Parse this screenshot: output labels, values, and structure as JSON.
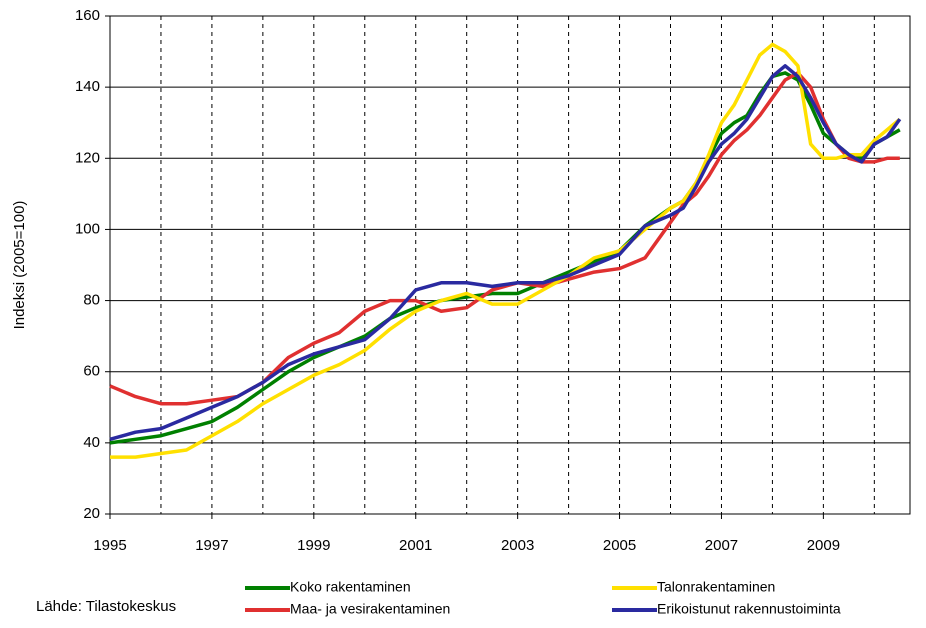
{
  "chart_data": {
    "type": "line",
    "y_label": "Indeksi (2005=100)",
    "source": "Lähde: Tilastokeskus",
    "x": [
      1995,
      1995.5,
      1996,
      1996.5,
      1997,
      1997.5,
      1998,
      1998.5,
      1999,
      1999.5,
      2000,
      2000.5,
      2001,
      2001.5,
      2002,
      2002.5,
      2003,
      2003.5,
      2004,
      2004.5,
      2005,
      2005.5,
      2006,
      2006.25,
      2006.5,
      2006.75,
      2007,
      2007.25,
      2007.5,
      2007.75,
      2008,
      2008.25,
      2008.5,
      2008.75,
      2009,
      2009.25,
      2009.5,
      2009.75,
      2010,
      2010.25,
      2010.5
    ],
    "series": [
      {
        "name": "Koko rakentaminen",
        "color": "#008000",
        "values": [
          40,
          41,
          42,
          44,
          46,
          50,
          55,
          60,
          64,
          67,
          70,
          75,
          78,
          80,
          81,
          82,
          82,
          85,
          88,
          91,
          94,
          101,
          106,
          108,
          113,
          120,
          127,
          130,
          132,
          138,
          143,
          144,
          142,
          135,
          127,
          124,
          121,
          120,
          124,
          126,
          128
        ]
      },
      {
        "name": "Maa- ja vesirakentaminen",
        "color": "#e03030",
        "values": [
          56,
          53,
          51,
          51,
          52,
          53,
          57,
          64,
          68,
          71,
          77,
          80,
          80,
          77,
          78,
          83,
          85,
          84,
          86,
          88,
          89,
          92,
          102,
          107,
          110,
          115,
          121,
          125,
          128,
          132,
          137,
          142,
          144,
          140,
          131,
          124,
          120,
          119,
          119,
          120,
          120
        ]
      },
      {
        "name": "Talonrakentaminen",
        "color": "#ffe000",
        "values": [
          36,
          36,
          37,
          38,
          42,
          46,
          51,
          55,
          59,
          62,
          66,
          72,
          77,
          80,
          82,
          79,
          79,
          83,
          87,
          92,
          94,
          100,
          106,
          108,
          113,
          121,
          130,
          135,
          142,
          149,
          152,
          150,
          146,
          124,
          120,
          120,
          121,
          121,
          125,
          128,
          131
        ]
      },
      {
        "name": "Erikoistunut rakennustoiminta",
        "color": "#2a2aa0",
        "values": [
          41,
          43,
          44,
          47,
          50,
          53,
          57,
          62,
          65,
          67,
          69,
          75,
          83,
          85,
          85,
          84,
          85,
          85,
          87,
          90,
          93,
          101,
          104,
          106,
          112,
          119,
          124,
          127,
          131,
          137,
          143,
          146,
          143,
          137,
          130,
          124,
          121,
          119,
          124,
          126,
          131
        ]
      }
    ],
    "xlim": [
      1995,
      2010.7
    ],
    "xticks": [
      1995,
      1997,
      1999,
      2001,
      2003,
      2005,
      2007,
      2009
    ],
    "xminor": [
      1996,
      1997,
      1998,
      1999,
      2000,
      2001,
      2002,
      2003,
      2004,
      2005,
      2006,
      2007,
      2008,
      2009,
      2010
    ],
    "ylim": [
      20,
      160
    ],
    "yticks": [
      20,
      40,
      60,
      80,
      100,
      120,
      140,
      160
    ],
    "grid": true
  }
}
